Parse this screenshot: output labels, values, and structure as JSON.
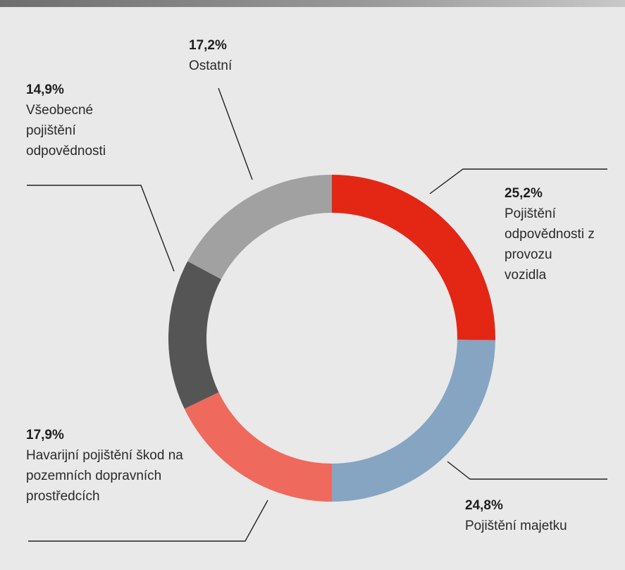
{
  "chart_data": {
    "type": "donut",
    "categories": [
      "Pojištění odpovědnosti z provozu vozidla",
      "Pojištění majetku",
      "Havarijní pojištění škod na pozemních dopravních prostředcích",
      "Všeobecné pojištění odpovědnosti",
      "Ostatní"
    ],
    "values": [
      25.2,
      24.8,
      17.9,
      14.9,
      17.2
    ],
    "value_labels": [
      "25,2%",
      "24,8%",
      "17,9%",
      "14,9%",
      "17,2%"
    ],
    "colors": [
      "#e42615",
      "#86a5c2",
      "#ef695d",
      "#555555",
      "#a1a1a1"
    ]
  }
}
